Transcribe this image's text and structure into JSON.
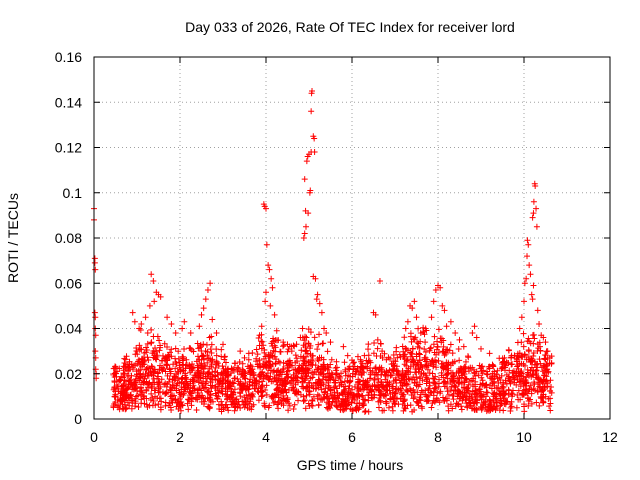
{
  "chart_data": {
    "type": "scatter",
    "title": "Day 033 of 2026, Rate Of TEC Index for receiver lord",
    "xlabel": "GPS time / hours",
    "ylabel": "ROTI / TECUs",
    "xlim": [
      0,
      12
    ],
    "ylim": [
      0,
      0.16
    ],
    "xticks": [
      0,
      2,
      4,
      6,
      8,
      10,
      12
    ],
    "yticks": [
      0,
      0.02,
      0.04,
      0.06,
      0.08,
      0.1,
      0.12,
      0.14,
      0.16
    ],
    "xtick_labels": [
      "0",
      "2",
      "4",
      "6",
      "8",
      "10",
      "12"
    ],
    "ytick_labels": [
      "0",
      "0.02",
      "0.04",
      "0.06",
      "0.08",
      "0.1",
      "0.12",
      "0.14",
      "0.16"
    ],
    "grid": true,
    "marker": "+",
    "marker_color": "#ff0000",
    "series": [
      {
        "name": "ROTI",
        "points": [
          [
            0.0,
            0.093
          ],
          [
            0.0,
            0.088
          ],
          [
            0.02,
            0.071
          ],
          [
            0.02,
            0.069
          ],
          [
            0.03,
            0.066
          ],
          [
            0.02,
            0.047
          ],
          [
            0.03,
            0.045
          ],
          [
            0.03,
            0.04
          ],
          [
            0.04,
            0.037
          ],
          [
            0.03,
            0.03
          ],
          [
            0.04,
            0.027
          ],
          [
            0.04,
            0.022
          ],
          [
            0.05,
            0.02
          ],
          [
            0.05,
            0.018
          ],
          [
            1.33,
            0.064
          ],
          [
            1.38,
            0.061
          ],
          [
            1.45,
            0.056
          ],
          [
            1.5,
            0.055
          ],
          [
            1.4,
            0.052
          ],
          [
            1.3,
            0.05
          ],
          [
            1.55,
            0.054
          ],
          [
            1.2,
            0.045
          ],
          [
            1.1,
            0.042
          ],
          [
            0.9,
            0.047
          ],
          [
            0.95,
            0.043
          ],
          [
            1.05,
            0.04
          ],
          [
            1.25,
            0.038
          ],
          [
            1.7,
            0.045
          ],
          [
            1.8,
            0.042
          ],
          [
            1.9,
            0.038
          ],
          [
            2.05,
            0.04
          ],
          [
            2.1,
            0.043
          ],
          [
            2.25,
            0.038
          ],
          [
            2.7,
            0.06
          ],
          [
            2.65,
            0.057
          ],
          [
            2.6,
            0.053
          ],
          [
            2.55,
            0.049
          ],
          [
            2.5,
            0.046
          ],
          [
            2.45,
            0.041
          ],
          [
            2.75,
            0.044
          ],
          [
            2.85,
            0.038
          ],
          [
            3.0,
            0.033
          ],
          [
            3.4,
            0.03
          ],
          [
            3.5,
            0.027
          ],
          [
            3.6,
            0.029
          ],
          [
            3.95,
            0.095
          ],
          [
            3.97,
            0.094
          ],
          [
            4.0,
            0.093
          ],
          [
            4.02,
            0.077
          ],
          [
            4.05,
            0.068
          ],
          [
            4.08,
            0.066
          ],
          [
            4.12,
            0.062
          ],
          [
            4.15,
            0.058
          ],
          [
            4.0,
            0.056
          ],
          [
            3.98,
            0.052
          ],
          [
            4.1,
            0.05
          ],
          [
            4.2,
            0.046
          ],
          [
            3.9,
            0.041
          ],
          [
            3.85,
            0.037
          ],
          [
            4.25,
            0.039
          ],
          [
            4.4,
            0.034
          ],
          [
            4.5,
            0.033
          ],
          [
            4.6,
            0.03
          ],
          [
            4.9,
            0.106
          ],
          [
            4.95,
            0.114
          ],
          [
            4.97,
            0.116
          ],
          [
            5.0,
            0.117
          ],
          [
            5.05,
            0.118
          ],
          [
            4.92,
            0.092
          ],
          [
            4.98,
            0.091
          ],
          [
            5.02,
            0.1
          ],
          [
            5.03,
            0.101
          ],
          [
            4.88,
            0.08
          ],
          [
            4.9,
            0.082
          ],
          [
            4.93,
            0.085
          ],
          [
            5.05,
            0.136
          ],
          [
            5.07,
            0.145
          ],
          [
            5.06,
            0.144
          ],
          [
            5.1,
            0.125
          ],
          [
            5.12,
            0.124
          ],
          [
            5.13,
            0.118
          ],
          [
            5.1,
            0.063
          ],
          [
            5.15,
            0.062
          ],
          [
            5.18,
            0.053
          ],
          [
            5.2,
            0.055
          ],
          [
            5.25,
            0.051
          ],
          [
            5.3,
            0.047
          ],
          [
            5.35,
            0.04
          ],
          [
            5.4,
            0.038
          ],
          [
            5.5,
            0.034
          ],
          [
            4.85,
            0.04
          ],
          [
            4.8,
            0.036
          ],
          [
            5.8,
            0.032
          ],
          [
            5.9,
            0.028
          ],
          [
            6.0,
            0.026
          ],
          [
            6.5,
            0.047
          ],
          [
            6.55,
            0.046
          ],
          [
            6.65,
            0.061
          ],
          [
            6.6,
            0.035
          ],
          [
            6.7,
            0.03
          ],
          [
            7.35,
            0.05
          ],
          [
            7.4,
            0.049
          ],
          [
            7.45,
            0.052
          ],
          [
            7.3,
            0.043
          ],
          [
            7.25,
            0.04
          ],
          [
            7.5,
            0.045
          ],
          [
            7.6,
            0.038
          ],
          [
            7.7,
            0.034
          ],
          [
            7.95,
            0.057
          ],
          [
            8.0,
            0.059
          ],
          [
            8.05,
            0.058
          ],
          [
            7.9,
            0.052
          ],
          [
            8.1,
            0.05
          ],
          [
            8.15,
            0.048
          ],
          [
            7.85,
            0.045
          ],
          [
            8.2,
            0.041
          ],
          [
            8.3,
            0.043
          ],
          [
            8.4,
            0.038
          ],
          [
            8.5,
            0.035
          ],
          [
            8.6,
            0.032
          ],
          [
            8.8,
            0.038
          ],
          [
            8.85,
            0.041
          ],
          [
            8.9,
            0.036
          ],
          [
            9.0,
            0.031
          ],
          [
            9.2,
            0.029
          ],
          [
            9.5,
            0.025
          ],
          [
            9.7,
            0.027
          ],
          [
            9.9,
            0.04
          ],
          [
            9.95,
            0.045
          ],
          [
            10.0,
            0.052
          ],
          [
            10.02,
            0.06
          ],
          [
            10.05,
            0.062
          ],
          [
            10.07,
            0.072
          ],
          [
            10.08,
            0.079
          ],
          [
            10.1,
            0.077
          ],
          [
            10.12,
            0.068
          ],
          [
            10.15,
            0.064
          ],
          [
            10.18,
            0.055
          ],
          [
            10.2,
            0.053
          ],
          [
            10.22,
            0.059
          ],
          [
            10.2,
            0.089
          ],
          [
            10.22,
            0.091
          ],
          [
            10.23,
            0.096
          ],
          [
            10.25,
            0.104
          ],
          [
            10.26,
            0.103
          ],
          [
            10.28,
            0.093
          ],
          [
            10.3,
            0.085
          ],
          [
            10.32,
            0.048
          ],
          [
            10.35,
            0.042
          ],
          [
            10.4,
            0.037
          ],
          [
            10.45,
            0.036
          ],
          [
            10.5,
            0.034
          ],
          [
            10.55,
            0.03
          ],
          [
            10.6,
            0.027
          ]
        ],
        "band": {
          "x_range": [
            0.45,
            10.65
          ],
          "density": "high",
          "base_range": [
            0.003,
            0.022
          ],
          "bursts": [
            {
              "center": 1.3,
              "width": 0.9,
              "height": 0.02
            },
            {
              "center": 2.6,
              "width": 0.7,
              "height": 0.018
            },
            {
              "center": 4.0,
              "width": 0.6,
              "height": 0.02
            },
            {
              "center": 5.0,
              "width": 0.8,
              "height": 0.022
            },
            {
              "center": 6.5,
              "width": 0.6,
              "height": 0.014
            },
            {
              "center": 7.4,
              "width": 0.6,
              "height": 0.016
            },
            {
              "center": 8.1,
              "width": 0.8,
              "height": 0.02
            },
            {
              "center": 10.1,
              "width": 0.9,
              "height": 0.02
            }
          ]
        }
      }
    ]
  }
}
